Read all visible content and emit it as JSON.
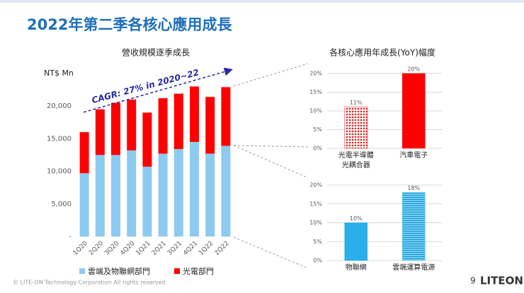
{
  "slide": {
    "title": "2022年第二季各核心應用成長",
    "footer": "© LITE-ON Technology Corporation All rights reserved",
    "page_number": "9",
    "logo": "LITEON"
  },
  "chart_data": [
    {
      "type": "stacked_bar",
      "title": "營收規模逐季成長",
      "y_label": "NT$ Mn",
      "annotation": "CAGR: 27% in 2020~22",
      "categories": [
        "1Q20",
        "2Q20",
        "3Q20",
        "4Q20",
        "1Q21",
        "2Q21",
        "3Q21",
        "4Q21",
        "1Q22",
        "2Q22"
      ],
      "series": [
        {
          "name": "雲端及物聯網部門",
          "color": "#8ccbef",
          "values": [
            9700,
            12500,
            12500,
            13200,
            10700,
            12700,
            13400,
            14500,
            12700,
            13900
          ]
        },
        {
          "name": "光電部門",
          "color": "#ff0000",
          "values": [
            6300,
            7000,
            8000,
            7800,
            8300,
            8500,
            8500,
            8500,
            8700,
            9000
          ]
        }
      ],
      "ylim": [
        0,
        25000
      ],
      "yticks": [
        {
          "value": 0,
          "label": "-"
        },
        {
          "value": 5000,
          "label": "5,000"
        },
        {
          "value": 10000,
          "label": "10,000"
        },
        {
          "value": 15000,
          "label": "15,000"
        },
        {
          "value": 20000,
          "label": "20,000"
        }
      ],
      "legend": "bottom"
    },
    {
      "type": "bar",
      "title": "各核心應用年成長(YoY)幅度",
      "categories": [
        "光電半導體\n光耦合器",
        "汽車電子"
      ],
      "values": [
        11,
        20
      ],
      "value_labels": [
        "11%",
        "20%"
      ],
      "colors": [
        "#e02020",
        "#ff0000"
      ],
      "ylim": [
        0,
        20
      ],
      "yticks": [
        {
          "value": 0,
          "label": "0%"
        },
        {
          "value": 5,
          "label": "5%"
        },
        {
          "value": 10,
          "label": "10%"
        },
        {
          "value": 15,
          "label": "15%"
        },
        {
          "value": 20,
          "label": "20%"
        }
      ]
    },
    {
      "type": "bar",
      "categories": [
        "物聯網",
        "雲端運算電源"
      ],
      "values": [
        10,
        18
      ],
      "value_labels": [
        "10%",
        "18%"
      ],
      "colors": [
        "#29aee8",
        "#4cc0ec"
      ],
      "ylim": [
        0,
        20
      ],
      "yticks": [
        {
          "value": 0,
          "label": "0%"
        },
        {
          "value": 5,
          "label": "5%"
        },
        {
          "value": 10,
          "label": "10%"
        },
        {
          "value": 15,
          "label": "15%"
        },
        {
          "value": 20,
          "label": "20%"
        }
      ]
    }
  ]
}
